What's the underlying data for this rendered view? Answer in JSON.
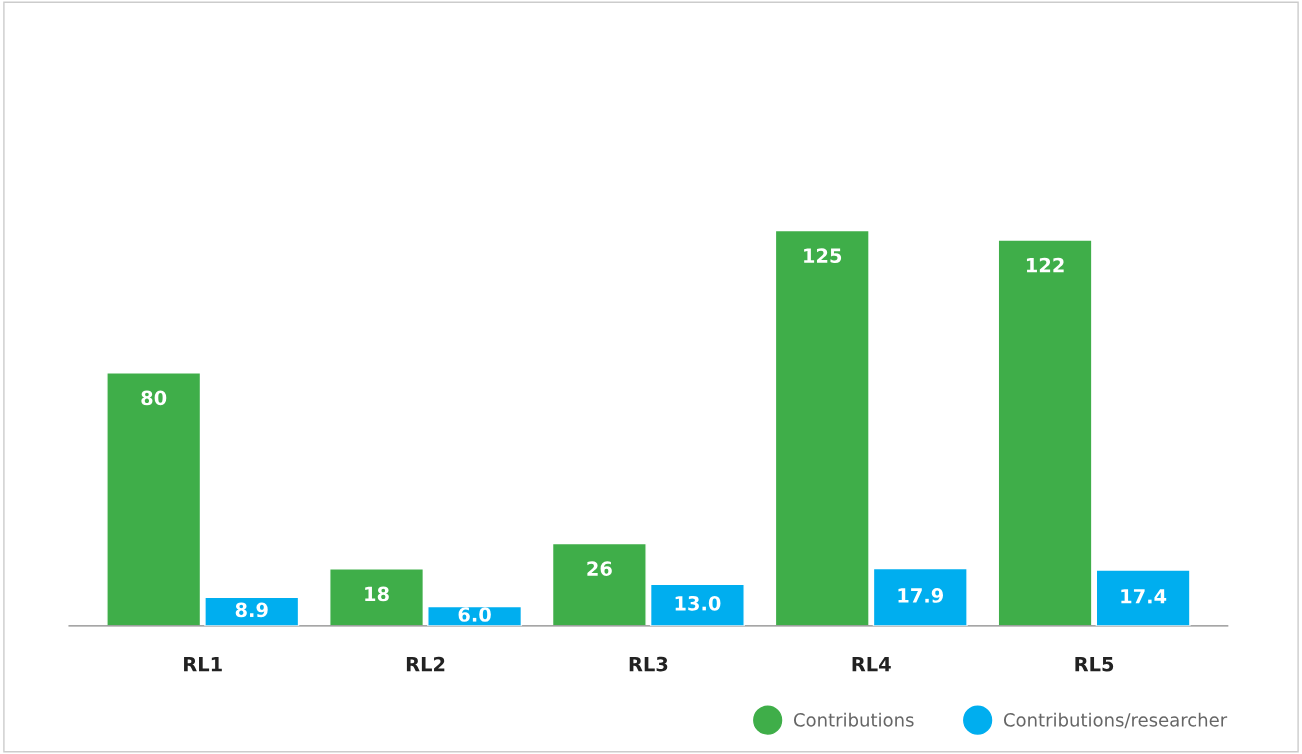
{
  "chart_data": {
    "type": "bar",
    "categories": [
      "RL1",
      "RL2",
      "RL3",
      "RL4",
      "RL5"
    ],
    "series": [
      {
        "name": "Contributions",
        "color": "#3fae49",
        "values": [
          80,
          18,
          26,
          125,
          122
        ]
      },
      {
        "name": "Contributions/researcher",
        "color": "#00aeef",
        "values": [
          8.9,
          6.0,
          13.0,
          17.9,
          17.4
        ],
        "axis": "y2",
        "value_labels": [
          "8.9",
          "6.0",
          "13.0",
          "17.9",
          "17.4"
        ]
      }
    ],
    "tick_labels": "x",
    "data_labels": true,
    "legend": "bottom right",
    "grid": false
  }
}
